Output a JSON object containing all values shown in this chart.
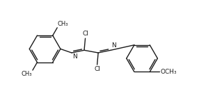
{
  "background_color": "#ffffff",
  "line_color": "#1a1a1a",
  "line_width": 1.0,
  "font_size": 6.5,
  "fig_width": 3.09,
  "fig_height": 1.44,
  "dpi": 100,
  "xlim": [
    0,
    9.5
  ],
  "ylim": [
    0.2,
    4.8
  ]
}
